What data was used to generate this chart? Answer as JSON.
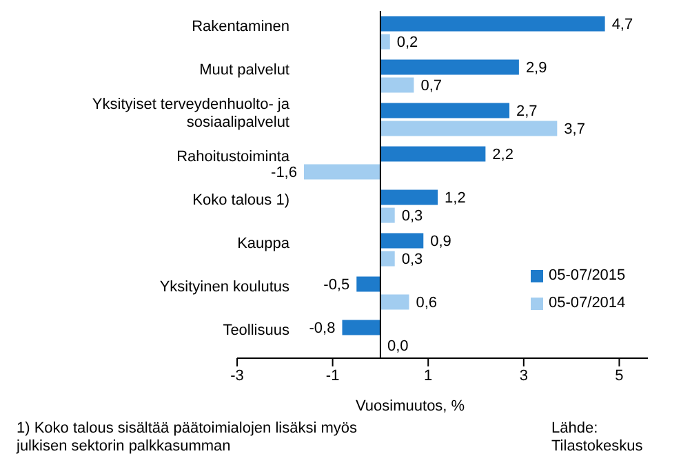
{
  "chart_data": {
    "type": "bar",
    "orientation": "horizontal",
    "categories": [
      "Rakentaminen",
      "Muut palvelut",
      "Yksityiset terveydenhuolto- ja sosiaalipalvelut",
      "Rahoitustoiminta",
      "Koko talous 1)",
      "Kauppa",
      "Yksityinen koulutus",
      "Teollisuus"
    ],
    "series": [
      {
        "name": "05-07/2015",
        "color": "#1e7bcb",
        "values": [
          4.7,
          2.9,
          2.7,
          2.2,
          1.2,
          0.9,
          -0.5,
          -0.8
        ],
        "value_labels": [
          "4,7",
          "2,9",
          "2,7",
          "2,2",
          "1,2",
          "0,9",
          "-0,5",
          "-0,8"
        ]
      },
      {
        "name": "05-07/2014",
        "color": "#a2cdf0",
        "values": [
          0.2,
          0.7,
          3.7,
          -1.6,
          0.3,
          0.3,
          0.6,
          0.0
        ],
        "value_labels": [
          "0,2",
          "0,7",
          "3,7",
          "-1,6",
          "0,3",
          "0,3",
          "0,6",
          "0,0"
        ]
      }
    ],
    "xlim": [
      -3,
      5.6
    ],
    "xticks": [
      -3,
      -1,
      1,
      3,
      5
    ],
    "xlabel": "Vuosimuutos, %",
    "ref_lines": [
      {
        "axis": "x",
        "value": 0,
        "color": "#000000"
      }
    ],
    "grid": false,
    "legend": "bottom right",
    "annotations": [
      "1) Koko talous sisältää päätoimialojen lisäksi myös julkisen sektorin palkkasumman",
      "Lähde: Tilastokeskus"
    ]
  }
}
